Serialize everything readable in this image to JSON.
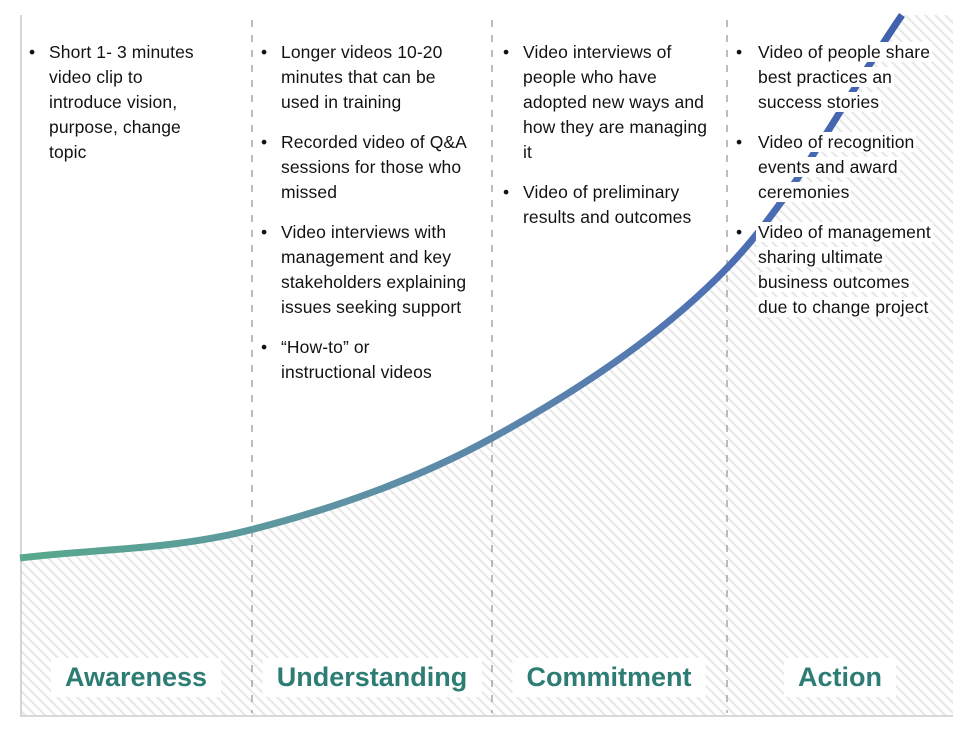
{
  "bullet_char": "•",
  "stages": [
    {
      "label": "Awareness",
      "bullets": [
        "Short 1- 3 minutes video clip to introduce vision, purpose, change topic"
      ]
    },
    {
      "label": "Understanding",
      "bullets": [
        "Longer videos 10-20 minutes that can be used in training",
        "Recorded video of Q&A sessions for those who missed",
        "Video interviews with management and key stakeholders explaining issues seeking support",
        "“How-to” or instructional videos"
      ]
    },
    {
      "label": "Commitment",
      "bullets": [
        "Video interviews of people who have adopted new ways and how they are managing it",
        "Video of preliminary results and outcomes"
      ]
    },
    {
      "label": "Action",
      "bullets": [
        "Video of people share best practices an success stories",
        "Video of recognition events and award ceremonies",
        "Video of management sharing ultimate business outcomes due to change project"
      ]
    }
  ],
  "colors": {
    "stage_label": "#2e7d74",
    "curve_start_green": "#58a98d",
    "curve_mid_teal": "#5e93a3",
    "curve_end_blue": "#3f62ae",
    "hatch_line": "#e8e8e8",
    "separator": "#999999",
    "axis_border": "#cccccc",
    "bullet_text": "#121212"
  }
}
